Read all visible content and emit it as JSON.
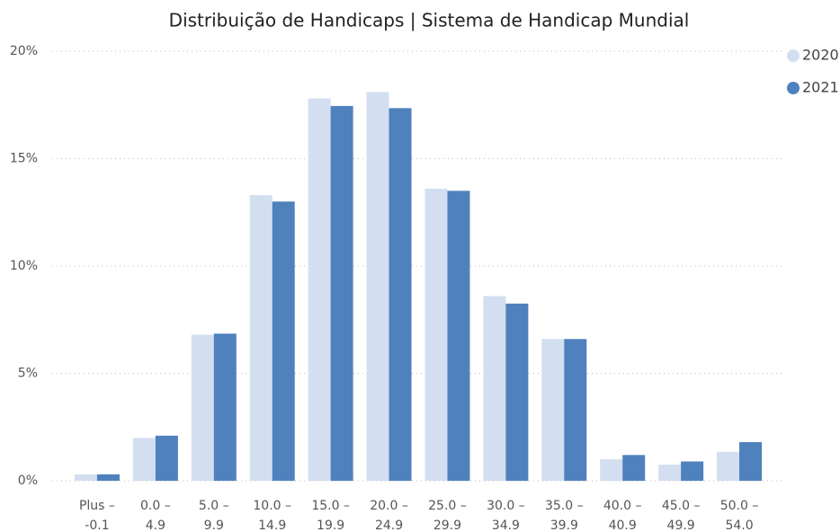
{
  "chart_data": {
    "type": "bar",
    "title": "Distribuição de Handicaps | Sistema de Handicap Mundial",
    "categories": [
      "Plus –\n-0.1",
      "0.0 –\n4.9",
      "5.0 –\n9.9",
      "10.0 –\n14.9",
      "15.0 –\n19.9",
      "20.0 –\n24.9",
      "25.0 –\n29.9",
      "30.0 –\n34.9",
      "35.0 –\n39.9",
      "40.0 –\n40.9",
      "45.0 –\n49.9",
      "50.0 –\n54.0"
    ],
    "series": [
      {
        "name": "2020",
        "color": "#d3dff0",
        "values": [
          0.3,
          2.0,
          6.8,
          13.3,
          17.8,
          18.1,
          13.6,
          8.6,
          6.6,
          1.0,
          0.75,
          1.35
        ]
      },
      {
        "name": "2021",
        "color": "#4f81bd",
        "values": [
          0.3,
          2.1,
          6.85,
          13.0,
          17.45,
          17.35,
          13.5,
          8.25,
          6.6,
          1.2,
          0.9,
          1.8
        ]
      }
    ],
    "ylim": [
      0,
      20
    ],
    "yticks": [
      {
        "value": 0,
        "label": "0%"
      },
      {
        "value": 5,
        "label": "5%"
      },
      {
        "value": 10,
        "label": "10%"
      },
      {
        "value": 15,
        "label": "15%"
      },
      {
        "value": 20,
        "label": "20%"
      }
    ],
    "grid": true,
    "legend": "top-right"
  }
}
